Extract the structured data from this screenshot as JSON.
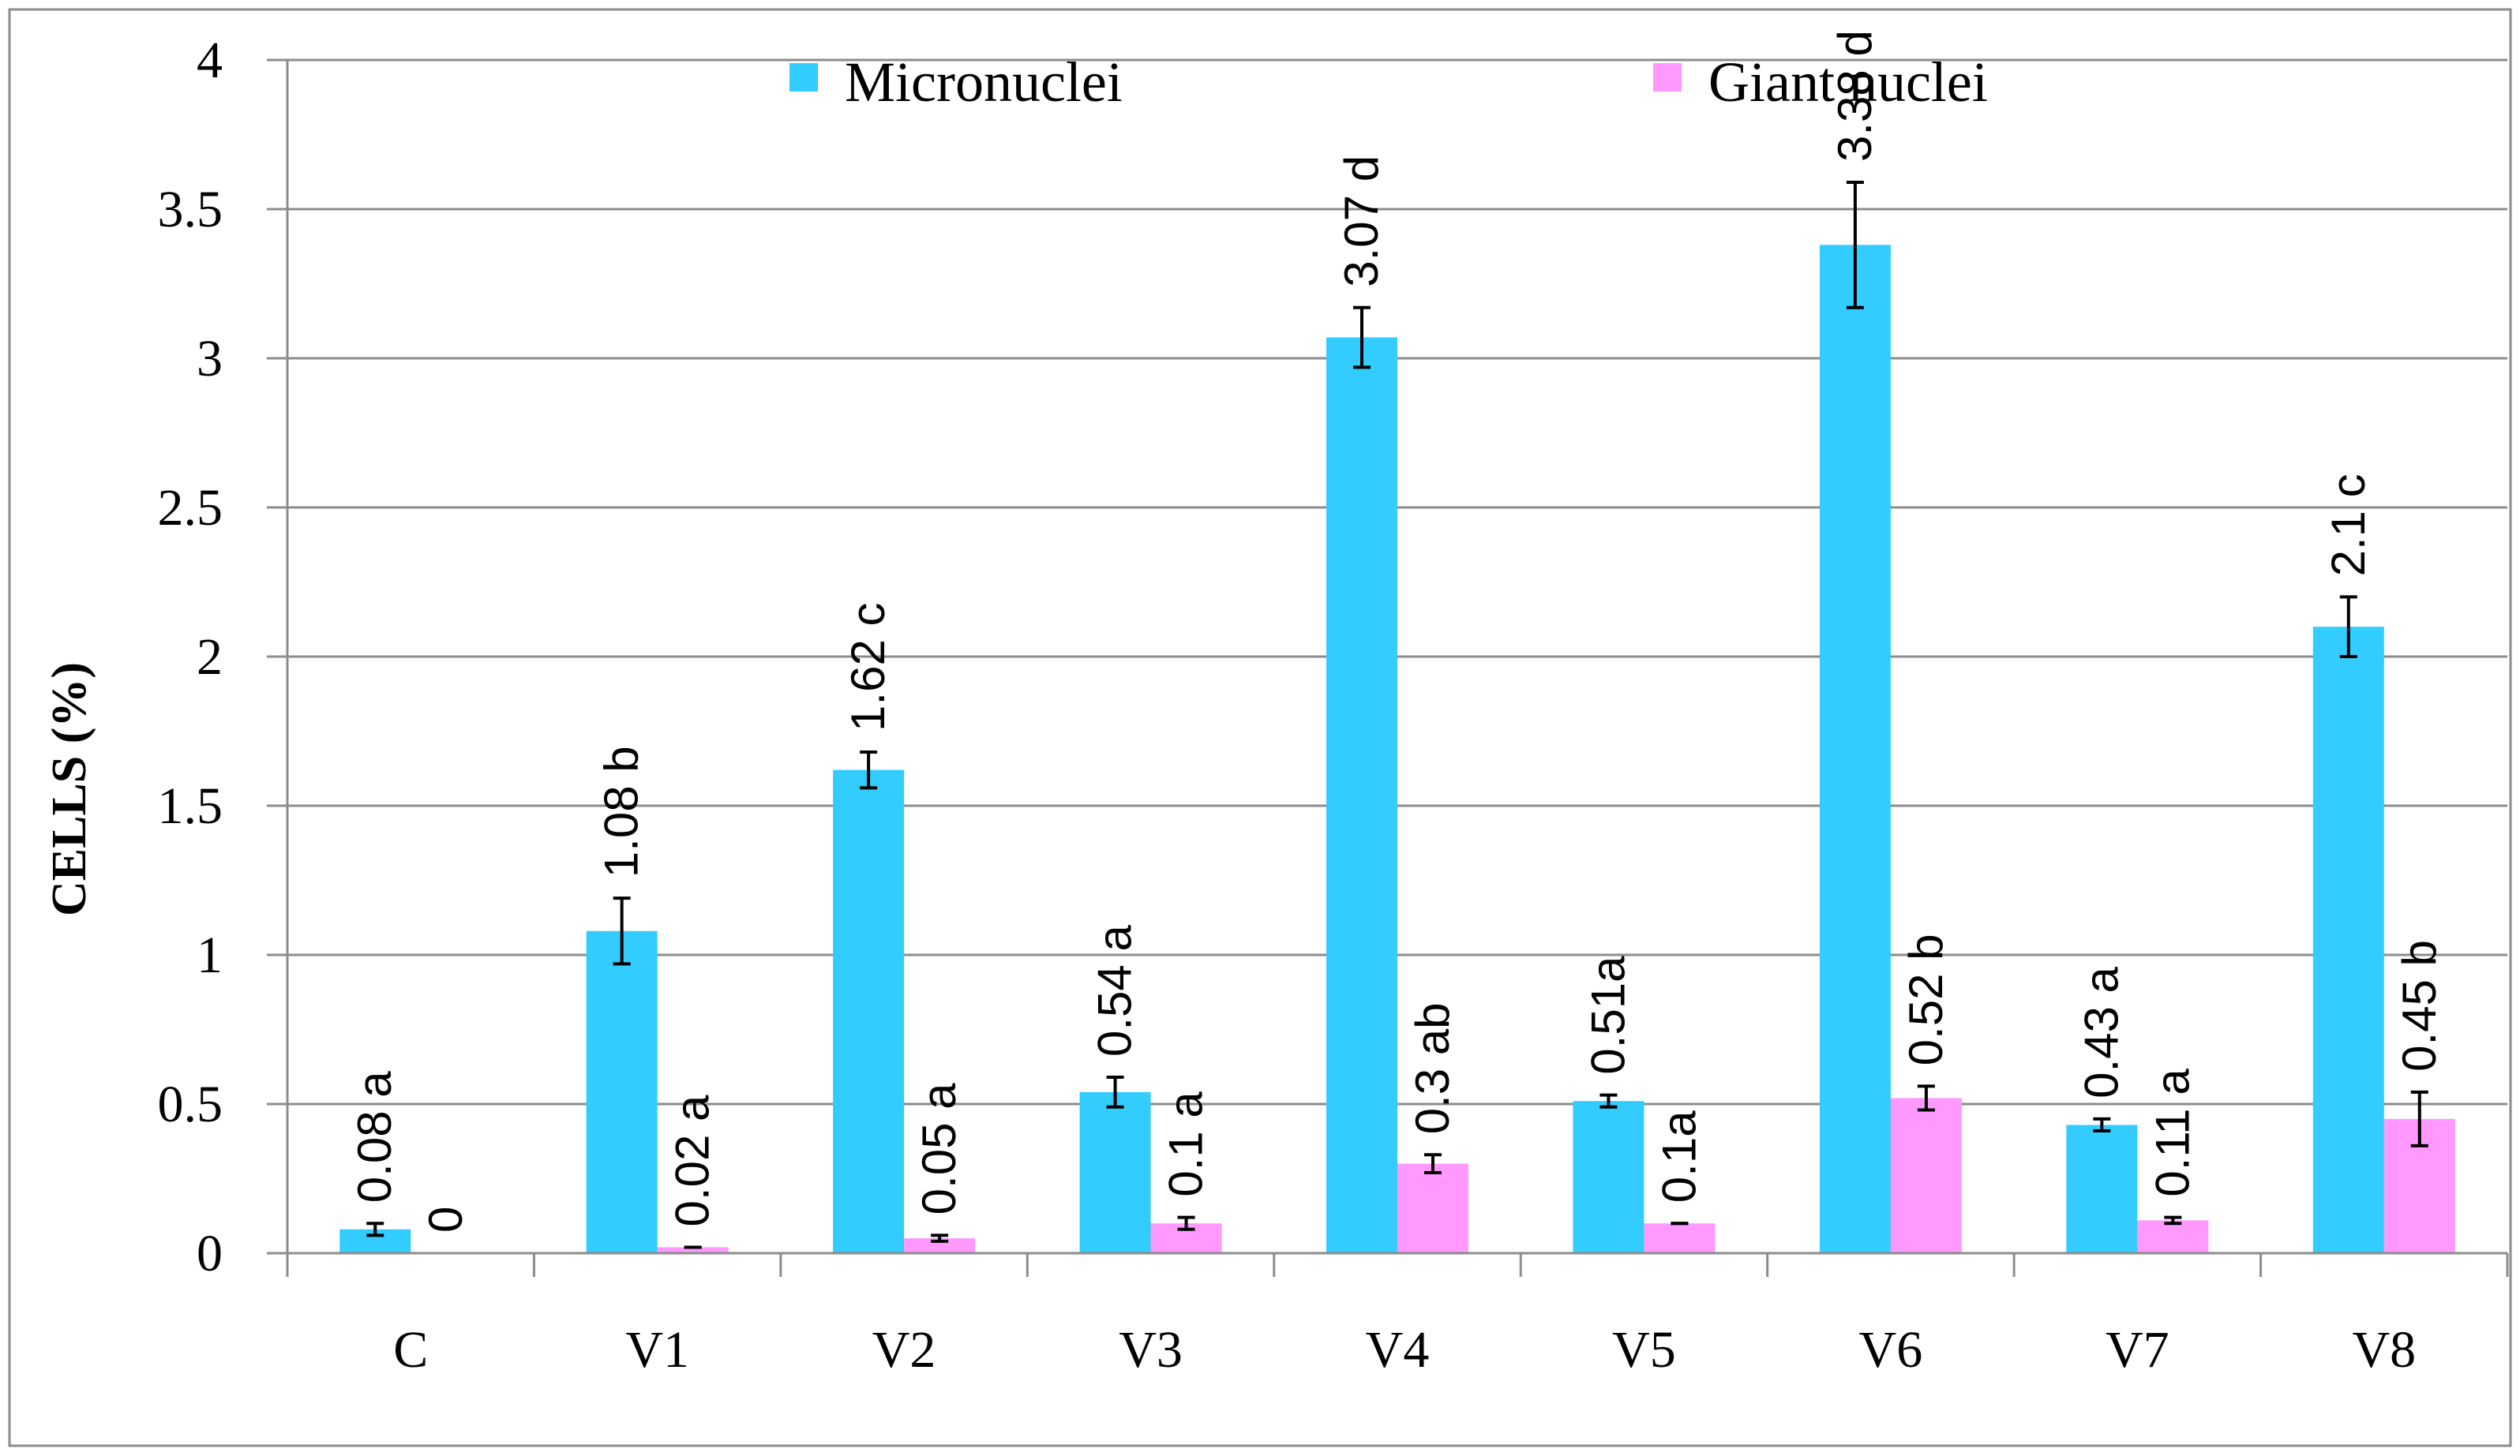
{
  "chart_data": {
    "type": "bar",
    "title": "",
    "xlabel": "",
    "ylabel": "CELLS (%)",
    "ylim": [
      0,
      4
    ],
    "ytick_step": 0.5,
    "yticks": [
      "0",
      "0.5",
      "1",
      "1.5",
      "2",
      "2.5",
      "3",
      "3.5",
      "4"
    ],
    "grid": true,
    "legend_position": "top",
    "categories": [
      "C",
      "V1",
      "V2",
      "V3",
      "V4",
      "V5",
      "V6",
      "V7",
      "V8"
    ],
    "series": [
      {
        "name": "Micronuclei",
        "color": "#33ccff",
        "values": [
          0.08,
          1.08,
          1.62,
          0.54,
          3.07,
          0.51,
          3.38,
          0.43,
          2.1
        ],
        "errors": [
          0.02,
          0.11,
          0.06,
          0.05,
          0.1,
          0.02,
          0.21,
          0.02,
          0.1
        ],
        "labels": [
          "0.08 a",
          "1.08 b",
          "1.62 c",
          "0.54 a",
          "3.07 d",
          "0.51a",
          "3.38 d",
          "0.43 a",
          "2.1 c"
        ]
      },
      {
        "name": "Giant nuclei",
        "color": "#ff99ff",
        "values": [
          0,
          0.02,
          0.05,
          0.1,
          0.3,
          0.1,
          0.52,
          0.11,
          0.45
        ],
        "errors": [
          0,
          0.0,
          0.01,
          0.02,
          0.03,
          0.0,
          0.04,
          0.01,
          0.09
        ],
        "labels": [
          "0",
          "0.02 a",
          "0.05 a",
          "0.1 a",
          "0.3 ab",
          "0.1a",
          "0.52 b",
          "0.11 a",
          "0.45 b"
        ]
      }
    ]
  }
}
